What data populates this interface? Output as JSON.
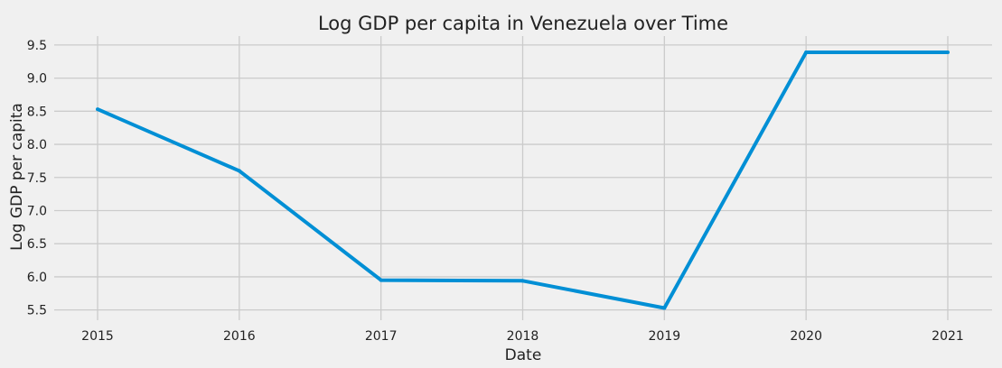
{
  "chart_data": {
    "type": "line",
    "title": "Log GDP per capita in Venezuela over Time",
    "xlabel": "Date",
    "ylabel": "Log GDP per capita",
    "x": [
      "2015",
      "2016",
      "2017",
      "2018",
      "2019",
      "2020",
      "2021"
    ],
    "series": [
      {
        "color": "#008fd5",
        "values": [
          8.53,
          7.6,
          5.95,
          5.94,
          5.53,
          9.39,
          9.39
        ]
      }
    ],
    "xticks": [
      "2015",
      "2016",
      "2017",
      "2018",
      "2019",
      "2020",
      "2021"
    ],
    "yticks": [
      "5.5",
      "6.0",
      "6.5",
      "7.0",
      "7.5",
      "8.0",
      "8.5",
      "9.0",
      "9.5"
    ],
    "ylim": [
      5.4,
      9.58
    ],
    "grid": true,
    "legend": "none",
    "background": "#f0f0f0",
    "grid_color": "#cbcbcb"
  }
}
